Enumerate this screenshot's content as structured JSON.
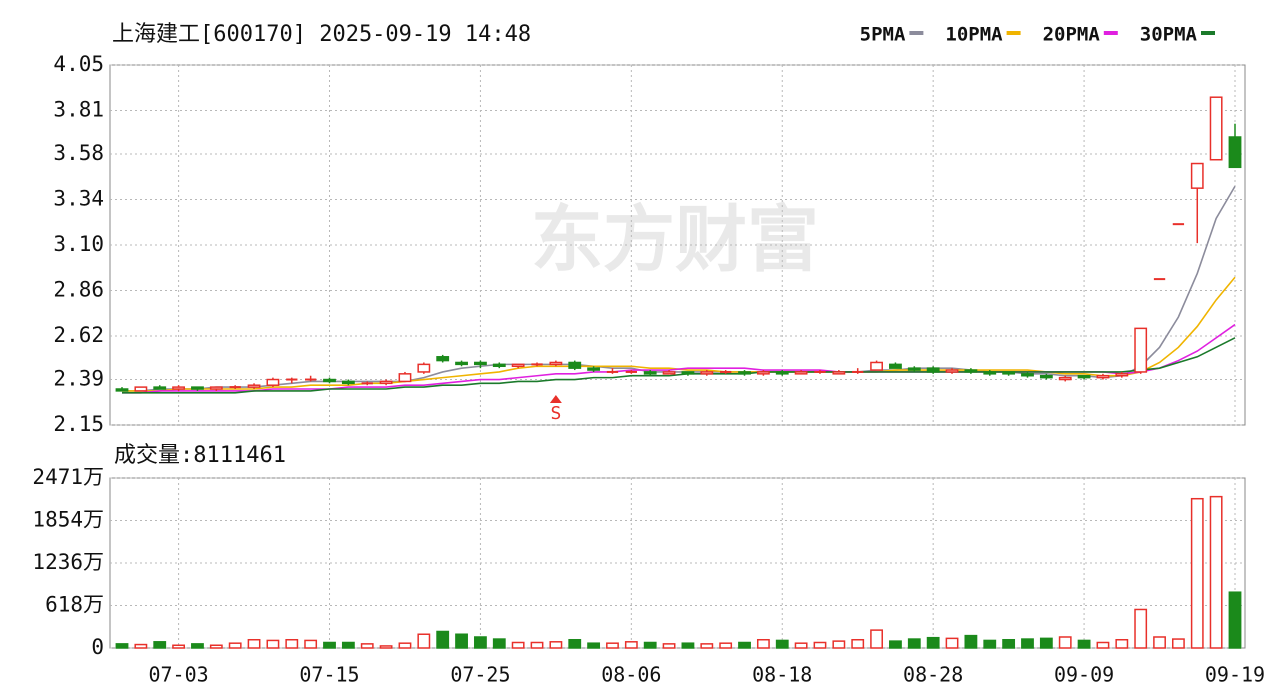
{
  "chart_data": [
    {
      "type": "candlestick",
      "title": "上海建工[600170] 2025-09-19 14:48",
      "watermark": "东方财富",
      "annotation": {
        "text": "S",
        "index": 23
      },
      "up_color": "#e8302a",
      "down_color": "#1b8a1b",
      "ylim": [
        2.15,
        4.05
      ],
      "yticks": [
        2.15,
        2.39,
        2.62,
        2.86,
        {
          "value": 3.1,
          "label": "3.10"
        },
        3.34,
        3.58,
        3.81,
        4.05
      ],
      "grid": true,
      "open": [
        2.34,
        2.33,
        2.35,
        2.34,
        2.35,
        2.34,
        2.35,
        2.35,
        2.36,
        2.39,
        2.39,
        2.39,
        2.38,
        2.37,
        2.37,
        2.38,
        2.43,
        2.51,
        2.48,
        2.48,
        2.47,
        2.46,
        2.47,
        2.47,
        2.48,
        2.45,
        2.43,
        2.43,
        2.43,
        2.42,
        2.43,
        2.42,
        2.43,
        2.43,
        2.42,
        2.43,
        2.42,
        2.43,
        2.42,
        2.43,
        2.44,
        2.47,
        2.45,
        2.45,
        2.43,
        2.44,
        2.43,
        2.43,
        2.42,
        2.41,
        2.39,
        2.41,
        2.4,
        2.41,
        2.43,
        2.92,
        3.21,
        3.4,
        3.55,
        3.67
      ],
      "high": [
        2.35,
        2.35,
        2.36,
        2.36,
        2.35,
        2.35,
        2.36,
        2.37,
        2.4,
        2.4,
        2.41,
        2.4,
        2.39,
        2.38,
        2.39,
        2.43,
        2.48,
        2.52,
        2.49,
        2.49,
        2.48,
        2.47,
        2.48,
        2.49,
        2.49,
        2.46,
        2.45,
        2.44,
        2.44,
        2.44,
        2.43,
        2.44,
        2.44,
        2.44,
        2.44,
        2.44,
        2.44,
        2.44,
        2.44,
        2.45,
        2.49,
        2.48,
        2.46,
        2.46,
        2.45,
        2.45,
        2.44,
        2.43,
        2.43,
        2.42,
        2.41,
        2.41,
        2.42,
        2.43,
        2.66,
        2.92,
        3.21,
        3.53,
        3.88,
        3.74
      ],
      "low": [
        2.33,
        2.33,
        2.34,
        2.33,
        2.33,
        2.33,
        2.34,
        2.34,
        2.35,
        2.37,
        2.38,
        2.37,
        2.36,
        2.36,
        2.36,
        2.38,
        2.42,
        2.48,
        2.46,
        2.45,
        2.45,
        2.45,
        2.46,
        2.46,
        2.44,
        2.43,
        2.42,
        2.42,
        2.41,
        2.42,
        2.41,
        2.41,
        2.42,
        2.41,
        2.41,
        2.41,
        2.42,
        2.42,
        2.42,
        2.42,
        2.44,
        2.45,
        2.43,
        2.42,
        2.42,
        2.42,
        2.41,
        2.41,
        2.4,
        2.39,
        2.38,
        2.39,
        2.39,
        2.4,
        2.42,
        2.92,
        3.21,
        3.11,
        3.55,
        3.51
      ],
      "close": [
        2.33,
        2.35,
        2.34,
        2.35,
        2.34,
        2.35,
        2.35,
        2.36,
        2.39,
        2.39,
        2.39,
        2.38,
        2.37,
        2.37,
        2.38,
        2.42,
        2.47,
        2.49,
        2.47,
        2.47,
        2.46,
        2.47,
        2.47,
        2.48,
        2.45,
        2.44,
        2.43,
        2.43,
        2.42,
        2.43,
        2.42,
        2.43,
        2.43,
        2.42,
        2.43,
        2.42,
        2.43,
        2.43,
        2.43,
        2.43,
        2.48,
        2.45,
        2.44,
        2.43,
        2.44,
        2.43,
        2.42,
        2.42,
        2.41,
        2.4,
        2.4,
        2.4,
        2.41,
        2.42,
        2.66,
        2.92,
        3.21,
        3.53,
        3.88,
        3.51
      ],
      "series": [
        {
          "name": "5PMA",
          "color": "#8c8c9c",
          "values": [
            2.33,
            2.33,
            2.34,
            2.34,
            2.34,
            2.35,
            2.35,
            2.35,
            2.36,
            2.37,
            2.38,
            2.38,
            2.38,
            2.38,
            2.38,
            2.38,
            2.4,
            2.43,
            2.45,
            2.46,
            2.47,
            2.47,
            2.47,
            2.47,
            2.47,
            2.46,
            2.45,
            2.45,
            2.43,
            2.43,
            2.43,
            2.43,
            2.43,
            2.43,
            2.43,
            2.43,
            2.43,
            2.43,
            2.43,
            2.43,
            2.44,
            2.44,
            2.45,
            2.45,
            2.45,
            2.44,
            2.43,
            2.43,
            2.42,
            2.42,
            2.41,
            2.41,
            2.4,
            2.41,
            2.46,
            2.56,
            2.72,
            2.95,
            3.24,
            3.41
          ]
        },
        {
          "name": "10PMA",
          "color": "#f0b400",
          "values": [
            2.33,
            2.33,
            2.33,
            2.34,
            2.34,
            2.34,
            2.34,
            2.34,
            2.35,
            2.35,
            2.36,
            2.36,
            2.36,
            2.37,
            2.37,
            2.38,
            2.39,
            2.4,
            2.41,
            2.42,
            2.43,
            2.45,
            2.46,
            2.46,
            2.46,
            2.46,
            2.46,
            2.46,
            2.45,
            2.45,
            2.44,
            2.44,
            2.43,
            2.43,
            2.43,
            2.43,
            2.43,
            2.43,
            2.43,
            2.43,
            2.43,
            2.44,
            2.44,
            2.44,
            2.44,
            2.44,
            2.44,
            2.44,
            2.44,
            2.43,
            2.42,
            2.42,
            2.41,
            2.41,
            2.43,
            2.48,
            2.56,
            2.67,
            2.81,
            2.93
          ]
        },
        {
          "name": "20PMA",
          "color": "#e020e0",
          "values": [
            2.32,
            2.32,
            2.33,
            2.33,
            2.33,
            2.33,
            2.33,
            2.33,
            2.34,
            2.34,
            2.34,
            2.34,
            2.35,
            2.35,
            2.35,
            2.36,
            2.36,
            2.37,
            2.38,
            2.39,
            2.39,
            2.4,
            2.41,
            2.42,
            2.42,
            2.43,
            2.43,
            2.44,
            2.44,
            2.44,
            2.45,
            2.45,
            2.45,
            2.45,
            2.44,
            2.44,
            2.44,
            2.44,
            2.43,
            2.43,
            2.43,
            2.43,
            2.43,
            2.43,
            2.43,
            2.43,
            2.43,
            2.43,
            2.43,
            2.43,
            2.43,
            2.43,
            2.43,
            2.42,
            2.43,
            2.45,
            2.49,
            2.54,
            2.61,
            2.68
          ]
        },
        {
          "name": "30PMA",
          "color": "#1b7a2b",
          "values": [
            2.32,
            2.32,
            2.32,
            2.32,
            2.32,
            2.32,
            2.32,
            2.33,
            2.33,
            2.33,
            2.33,
            2.34,
            2.34,
            2.34,
            2.34,
            2.35,
            2.35,
            2.36,
            2.36,
            2.37,
            2.37,
            2.38,
            2.38,
            2.39,
            2.39,
            2.4,
            2.4,
            2.41,
            2.41,
            2.41,
            2.42,
            2.42,
            2.42,
            2.42,
            2.43,
            2.43,
            2.43,
            2.43,
            2.43,
            2.43,
            2.43,
            2.43,
            2.43,
            2.43,
            2.43,
            2.43,
            2.43,
            2.43,
            2.43,
            2.43,
            2.43,
            2.43,
            2.43,
            2.43,
            2.44,
            2.45,
            2.48,
            2.51,
            2.56,
            2.61
          ]
        }
      ]
    },
    {
      "type": "bar",
      "title": "成交量:8111461",
      "categories": [
        null,
        null,
        null,
        "07-03",
        null,
        null,
        null,
        null,
        null,
        null,
        null,
        "07-15",
        null,
        null,
        null,
        null,
        null,
        null,
        null,
        "07-25",
        null,
        null,
        null,
        null,
        null,
        null,
        null,
        "08-06",
        null,
        null,
        null,
        null,
        null,
        null,
        null,
        "08-18",
        null,
        null,
        null,
        null,
        null,
        null,
        null,
        "08-28",
        null,
        null,
        null,
        null,
        null,
        null,
        null,
        "09-09",
        null,
        null,
        null,
        null,
        null,
        null,
        null,
        "09-19"
      ],
      "values": [
        60,
        50,
        90,
        40,
        60,
        40,
        70,
        120,
        110,
        120,
        110,
        80,
        80,
        60,
        30,
        70,
        200,
        240,
        200,
        160,
        130,
        80,
        80,
        90,
        120,
        70,
        70,
        90,
        80,
        60,
        70,
        60,
        70,
        80,
        120,
        110,
        70,
        80,
        100,
        120,
        260,
        100,
        130,
        150,
        140,
        180,
        110,
        120,
        130,
        140,
        160,
        110,
        80,
        120,
        560,
        160,
        130,
        2170,
        2200,
        811
      ],
      "ylim": [
        0,
        2471
      ],
      "yticks": [
        0,
        {
          "value": 618,
          "label": "618万"
        },
        {
          "value": 1236,
          "label": "1236万"
        },
        {
          "value": 1854,
          "label": "1854万"
        },
        {
          "value": 2471,
          "label": "2471万"
        }
      ],
      "grid": true
    }
  ]
}
